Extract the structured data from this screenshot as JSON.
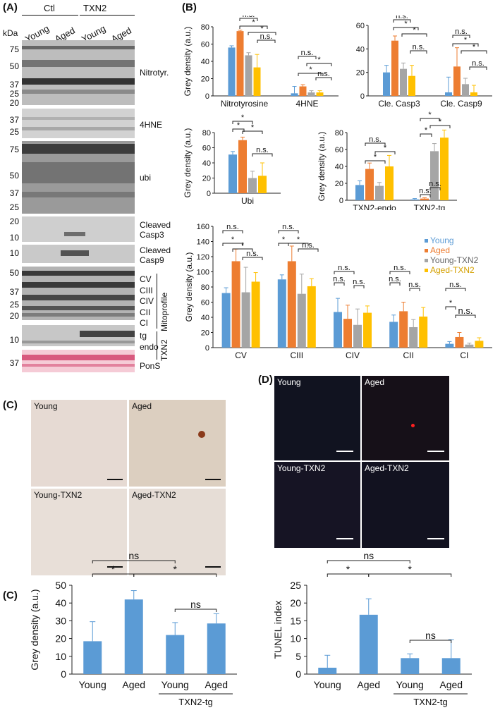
{
  "panel_labels": {
    "a": "(A)",
    "b": "(B)",
    "c": "(C)",
    "c2": "(C)",
    "d": "(D)"
  },
  "blot": {
    "kda_label": "kDa",
    "group_ctl": "Ctl",
    "group_txn2": "TXN2",
    "lanes": [
      "Young",
      "Aged",
      "Young",
      "Aged"
    ],
    "panels": [
      {
        "name": "Nitrotyr.",
        "markers": [
          "75",
          "50",
          "37",
          "25",
          "20"
        ]
      },
      {
        "name": "4HNE",
        "markers": [
          "37",
          "25"
        ]
      },
      {
        "name": "ubi",
        "markers": [
          "75",
          "50",
          "37",
          "25"
        ]
      },
      {
        "name": "Cleaved\nCasp3",
        "markers": [
          "20",
          "10"
        ]
      },
      {
        "name": "Cleaved\nCasp9",
        "markers": [
          "10"
        ]
      },
      {
        "name": "CV\nCIII\nCIV\nCII\nCI",
        "markers": [
          "50",
          "37",
          "25",
          "20"
        ],
        "side": "Mitoprofile"
      },
      {
        "name": "tg\nendo",
        "markers": [
          "10"
        ],
        "side": "TXN2"
      },
      {
        "name": "PonS",
        "markers": [
          "37"
        ]
      }
    ]
  },
  "legend": [
    "Young",
    "Aged",
    "Young-TXN2",
    "Aged-TXN2"
  ],
  "colors": {
    "young": "#5b9bd5",
    "aged": "#ed7d31",
    "young_txn2": "#a5a5a5",
    "aged_txn2": "#ffc000",
    "bar_c": "#5b9bd5"
  },
  "sig": {
    "star": "*",
    "ns_dot": "n.s.",
    "ns": "ns"
  },
  "micro_c": {
    "labels": [
      "Young",
      "Aged",
      "Young-TXN2",
      "Aged-TXN2"
    ]
  },
  "micro_d": {
    "labels": [
      "Young",
      "Aged",
      "Young-TXN2",
      "Aged-TXN2"
    ]
  },
  "chart_data": [
    {
      "type": "bar",
      "id": "b1",
      "ylabel": "Grey density (a.u.)",
      "ylim": [
        0,
        80
      ],
      "yticks": [
        0,
        20,
        40,
        60,
        80
      ],
      "categories": [
        "Nitrotyrosine",
        "4HNE"
      ],
      "series": [
        {
          "name": "Young",
          "values": [
            56,
            3
          ]
        },
        {
          "name": "Aged",
          "values": [
            75,
            11
          ]
        },
        {
          "name": "Young-TXN2",
          "values": [
            47,
            4
          ]
        },
        {
          "name": "Aged-TXN2",
          "values": [
            33,
            4
          ]
        }
      ],
      "errors": [
        [
          2,
          8
        ],
        [
          1,
          2
        ],
        [
          3,
          2
        ],
        [
          15,
          2
        ]
      ]
    },
    {
      "type": "bar",
      "id": "b2",
      "ylabel": "",
      "ylim": [
        0,
        60
      ],
      "yticks": [
        0,
        20,
        40,
        60
      ],
      "categories": [
        "Cle. Casp3",
        "Cle. Casp9"
      ],
      "series": [
        {
          "name": "Young",
          "values": [
            20,
            3
          ]
        },
        {
          "name": "Aged",
          "values": [
            47,
            25
          ]
        },
        {
          "name": "Young-TXN2",
          "values": [
            23,
            10
          ]
        },
        {
          "name": "Aged-TXN2",
          "values": [
            17,
            3
          ]
        }
      ],
      "errors": [
        [
          6,
          13
        ],
        [
          4,
          16
        ],
        [
          5,
          5
        ],
        [
          9,
          6
        ]
      ]
    },
    {
      "type": "bar",
      "id": "b3",
      "ylabel": "Grey density (a.u.)",
      "ylim": [
        0,
        80
      ],
      "yticks": [
        0,
        20,
        40,
        60,
        80
      ],
      "categories": [
        "Ubi"
      ],
      "series": [
        {
          "name": "Young",
          "values": [
            51
          ]
        },
        {
          "name": "Aged",
          "values": [
            70
          ]
        },
        {
          "name": "Young-TXN2",
          "values": [
            20
          ]
        },
        {
          "name": "Aged-TXN2",
          "values": [
            23
          ]
        }
      ],
      "errors": [
        [
          4
        ],
        [
          4
        ],
        [
          9
        ],
        [
          17
        ]
      ]
    },
    {
      "type": "bar",
      "id": "b4",
      "ylabel": "Grey density (a.u.)",
      "ylim": [
        0,
        80
      ],
      "yticks": [
        0,
        20,
        40,
        60,
        80
      ],
      "categories": [
        "TXN2-endo",
        "TXN2-tg"
      ],
      "series": [
        {
          "name": "Young",
          "values": [
            18,
            1
          ]
        },
        {
          "name": "Aged",
          "values": [
            37,
            2
          ]
        },
        {
          "name": "Young-TXN2",
          "values": [
            17,
            58
          ]
        },
        {
          "name": "Aged-TXN2",
          "values": [
            40,
            74
          ]
        }
      ],
      "errors": [
        [
          5,
          1
        ],
        [
          7,
          1
        ],
        [
          4,
          9
        ],
        [
          13,
          9
        ]
      ]
    },
    {
      "type": "bar",
      "id": "b5",
      "ylabel": "Grey density (a.u.)",
      "ylim": [
        0,
        160
      ],
      "yticks": [
        0,
        20,
        40,
        60,
        80,
        100,
        120,
        140,
        160
      ],
      "categories": [
        "CV",
        "CIII",
        "CIV",
        "CII",
        "CI"
      ],
      "series": [
        {
          "name": "Young",
          "values": [
            72,
            90,
            47,
            34,
            5
          ]
        },
        {
          "name": "Aged",
          "values": [
            114,
            114,
            38,
            48,
            14
          ]
        },
        {
          "name": "Young-TXN2",
          "values": [
            73,
            71,
            30,
            27,
            4
          ]
        },
        {
          "name": "Aged-TXN2",
          "values": [
            87,
            81,
            46,
            41,
            9
          ]
        }
      ],
      "errors": [
        [
          7,
          6,
          18,
          9,
          3
        ],
        [
          16,
          20,
          18,
          12,
          6
        ],
        [
          33,
          26,
          21,
          10,
          2
        ],
        [
          12,
          10,
          9,
          12,
          4
        ]
      ]
    },
    {
      "type": "bar",
      "id": "c_bar",
      "ylabel": "Grey density (a.u.)",
      "ylim": [
        0,
        50
      ],
      "yticks": [
        0,
        10,
        20,
        30,
        40,
        50
      ],
      "categories": [
        "Young",
        "Aged",
        "Young",
        "Aged"
      ],
      "values": [
        18.5,
        42,
        22,
        28.5
      ],
      "errors": [
        11,
        5,
        7,
        5.5
      ],
      "group_label": "TXN2-tg"
    },
    {
      "type": "bar",
      "id": "d_bar",
      "ylabel": "TUNEL index",
      "ylim": [
        0,
        25
      ],
      "yticks": [
        0,
        5,
        10,
        15,
        20,
        25
      ],
      "categories": [
        "Young",
        "Aged",
        "Young",
        "Aged"
      ],
      "values": [
        1.8,
        16.7,
        4.5,
        4.5
      ],
      "errors": [
        3.5,
        4.5,
        1.2,
        5.2
      ],
      "group_label": "TXN2-tg"
    }
  ]
}
